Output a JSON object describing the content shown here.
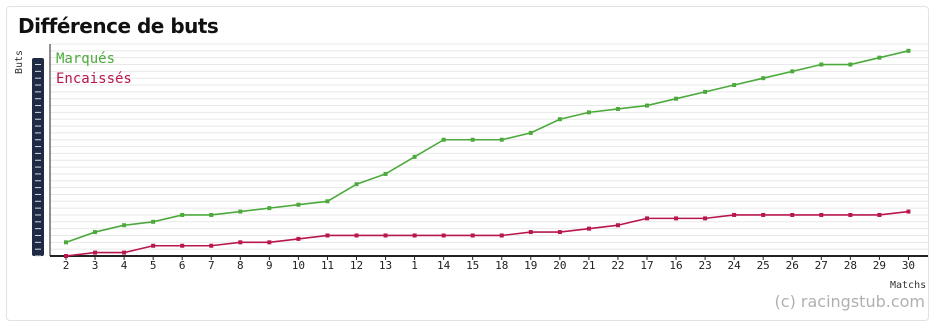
{
  "title": "Différence de buts",
  "credit": "(c) racingstub.com",
  "colors": {
    "scored": "#4caa3c",
    "conceded": "#b8174e",
    "grid": "#e8e8e8",
    "axis": "#1f2a44"
  },
  "chart_data": {
    "type": "line",
    "title": "Différence de buts",
    "xlabel": "Matchs",
    "ylabel": "Buts",
    "categories": [
      "2",
      "3",
      "4",
      "5",
      "6",
      "7",
      "8",
      "9",
      "10",
      "11",
      "12",
      "13",
      "1",
      "14",
      "15",
      "18",
      "19",
      "20",
      "21",
      "22",
      "17",
      "16",
      "23",
      "24",
      "25",
      "26",
      "27",
      "28",
      "29",
      "30"
    ],
    "series": [
      {
        "name": "Marqués",
        "color": "#4caa3c",
        "values": [
          4,
          7,
          9,
          10,
          12,
          12,
          13,
          14,
          15,
          16,
          21,
          24,
          29,
          34,
          34,
          34,
          36,
          40,
          42,
          43,
          44,
          46,
          48,
          50,
          52,
          54,
          56,
          56,
          58,
          60
        ]
      },
      {
        "name": "Encaissés",
        "color": "#b8174e",
        "values": [
          0,
          1,
          1,
          3,
          3,
          3,
          4,
          4,
          5,
          6,
          6,
          6,
          6,
          6,
          6,
          6,
          7,
          7,
          8,
          9,
          11,
          11,
          11,
          12,
          12,
          12,
          12,
          12,
          12,
          13
        ]
      }
    ],
    "ylim": [
      0,
      62
    ],
    "grid": true,
    "legend": "top-left"
  }
}
